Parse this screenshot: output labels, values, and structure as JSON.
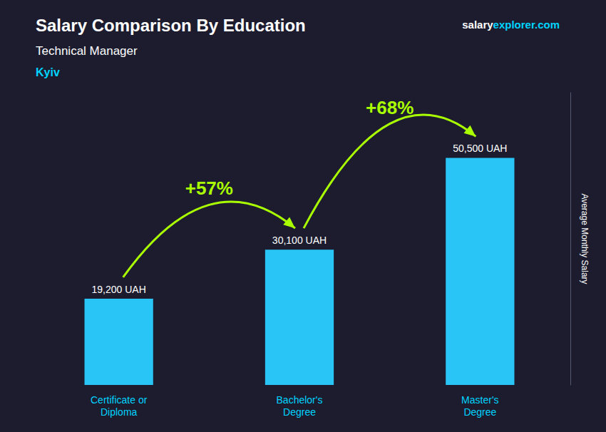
{
  "chart_data": {
    "type": "bar",
    "title": "Salary Comparison By Education",
    "subtitle": "Technical Manager",
    "location": "Kyiv",
    "source": [
      {
        "text": "salary",
        "color": "#ffffff"
      },
      {
        "text": "explorer.com",
        "color": "#00d4ff"
      }
    ],
    "categories": [
      "Certificate or\nDiploma",
      "Bachelor's\nDegree",
      "Master's\nDegree"
    ],
    "values": [
      19200,
      30100,
      50500
    ],
    "value_labels": [
      "19,200 UAH",
      "30,100 UAH",
      "50,500 UAH"
    ],
    "data_labels": true,
    "color": "#29c5f6",
    "y_label": "Average Monthly Salary",
    "ylim": [
      0,
      65000
    ],
    "yticks": [],
    "tick_labels": "x",
    "grid": false,
    "annotations": [
      {
        "text": "+57%",
        "color": "#aaff00"
      },
      {
        "text": "+68%",
        "color": "#aaff00"
      }
    ]
  }
}
